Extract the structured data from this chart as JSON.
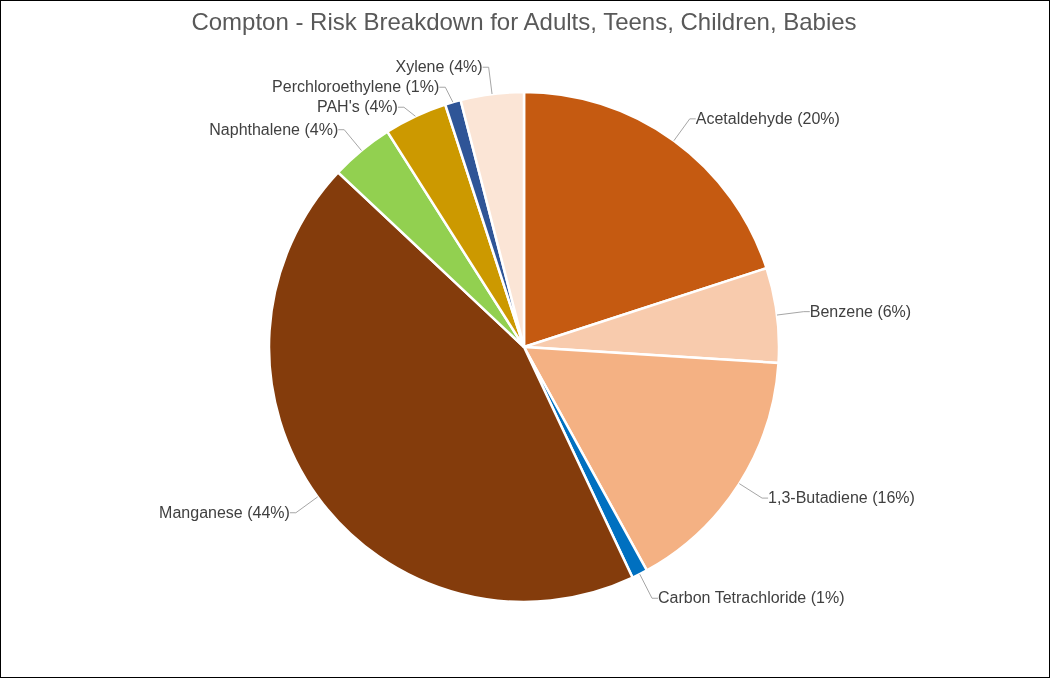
{
  "chart_data": {
    "type": "pie",
    "title": "Compton - Risk Breakdown for Adults, Teens, Children, Babies",
    "categories": [
      "Acetaldehyde (20%)",
      "Benzene (6%)",
      "1,3-Butadiene (16%)",
      "Carbon Tetrachloride (1%)",
      "Manganese (44%)",
      "Naphthalene (4%)",
      "PAH's (4%)",
      "Perchloroethylene (1%)",
      "Xylene (4%)"
    ],
    "values": [
      20,
      6,
      16,
      1,
      44,
      4,
      4,
      1,
      4
    ],
    "colors": [
      "#c55a11",
      "#f8cbad",
      "#f4b183",
      "#0070c0",
      "#843c0c",
      "#92d050",
      "#cc9900",
      "#2f5597",
      "#fbe5d6"
    ]
  }
}
